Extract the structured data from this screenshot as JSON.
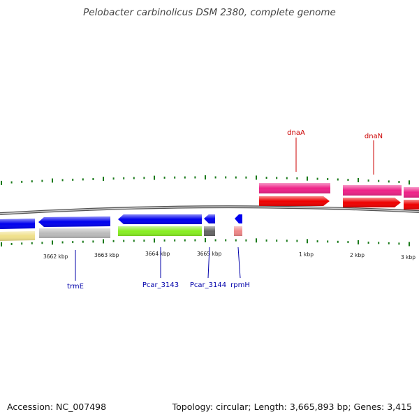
{
  "title": "Pelobacter carbinolicus DSM 2380, complete genome",
  "footer": {
    "accession": "Accession: NC_007498",
    "summary": "Topology: circular; Length: 3,665,893 bp; Genes: 3,415"
  },
  "colors": {
    "backbone": "#8a8a8a",
    "tick": "#1a7a1a",
    "forward_label": "#cc0000",
    "reverse_label": "#0000aa"
  },
  "scale_labels": [
    "3662 kbp",
    "3663 kbp",
    "3664 kbp",
    "3665 kbp",
    "1 kbp",
    "2 kbp",
    "3 kbp"
  ],
  "genes": [
    {
      "name": "dnaA",
      "strand": "+",
      "color": "#ee2288",
      "cog_color": "#ff0000"
    },
    {
      "name": "dnaN",
      "strand": "+",
      "color": "#ee2288",
      "cog_color": "#ff0000"
    },
    {
      "name": "trmE",
      "strand": "-",
      "color": "#0000ee",
      "cog_color": "#bbbbbb"
    },
    {
      "name": "Pcar_3143",
      "strand": "-",
      "color": "#0000ee",
      "cog_color": "#88ee22"
    },
    {
      "name": "Pcar_3144",
      "strand": "-",
      "color": "#0000ee",
      "cog_color": "#666666"
    },
    {
      "name": "rpmH",
      "strand": "-",
      "color": "#0000ee",
      "cog_color": "#ee8888"
    }
  ]
}
